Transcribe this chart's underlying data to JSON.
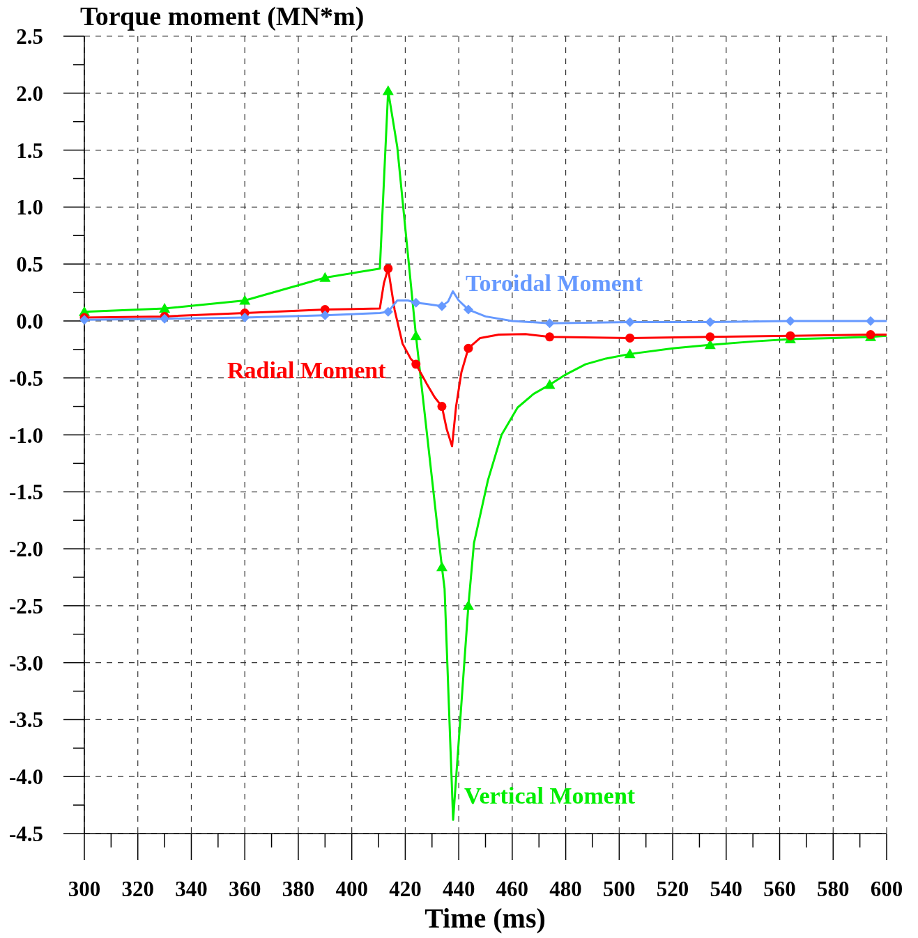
{
  "chart_data": {
    "type": "line",
    "ylabel": "Torque moment (MN*m)",
    "xlabel": "Time (ms)",
    "xlim": [
      300,
      600
    ],
    "ylim": [
      -4.5,
      2.5
    ],
    "xticks": [
      300,
      320,
      340,
      360,
      380,
      400,
      420,
      440,
      460,
      480,
      500,
      520,
      540,
      560,
      580,
      600
    ],
    "yticks": [
      {
        "value": -4.5,
        "label": "-4.5"
      },
      {
        "value": -4.25,
        "label": null
      },
      {
        "value": -4,
        "label": "-4.0"
      },
      {
        "value": -3.75,
        "label": null
      },
      {
        "value": -3.5,
        "label": "-3.5"
      },
      {
        "value": -3.25,
        "label": null
      },
      {
        "value": -3,
        "label": "-3.0"
      },
      {
        "value": -2.75,
        "label": null
      },
      {
        "value": -2.5,
        "label": "-2.5"
      },
      {
        "value": -2.25,
        "label": null
      },
      {
        "value": -2,
        "label": "-2.0"
      },
      {
        "value": -1.75,
        "label": null
      },
      {
        "value": -1.5,
        "label": "-1.5"
      },
      {
        "value": -1.25,
        "label": null
      },
      {
        "value": -1,
        "label": "-1.0"
      },
      {
        "value": -0.75,
        "label": null
      },
      {
        "value": -0.5,
        "label": "-0.5"
      },
      {
        "value": -0.25,
        "label": null
      },
      {
        "value": 0,
        "label": "0.0"
      },
      {
        "value": 0.25,
        "label": null
      },
      {
        "value": 0.5,
        "label": "0.5"
      },
      {
        "value": 0.75,
        "label": null
      },
      {
        "value": 1,
        "label": "1.0"
      },
      {
        "value": 1.25,
        "label": null
      },
      {
        "value": 1.5,
        "label": "1.5"
      },
      {
        "value": 1.75,
        "label": null
      },
      {
        "value": 2,
        "label": "2.0"
      },
      {
        "value": 2.25,
        "label": null
      },
      {
        "value": 2.5,
        "label": "2.5"
      }
    ],
    "grid": true,
    "line_style": "solid",
    "marker": "none",
    "series": [
      {
        "name": "Vertical Moment",
        "color": "#00ee00",
        "x": [
          300,
          330,
          360,
          390,
          410.5,
          413.6,
          417,
          424,
          433.7,
          434.7,
          437.9,
          443.6,
          445.7,
          450.9,
          456,
          462,
          468,
          474,
          480,
          487.4,
          495,
          504,
          520,
          534,
          550,
          564,
          580,
          594,
          600
        ],
        "values": [
          0.08,
          0.11,
          0.18,
          0.38,
          0.46,
          2.02,
          1.53,
          -0.13,
          -2.16,
          -2.35,
          -4.38,
          -2.5,
          -1.95,
          -1.4,
          -1.0,
          -0.76,
          -0.64,
          -0.56,
          -0.47,
          -0.38,
          -0.33,
          -0.29,
          -0.24,
          -0.21,
          -0.18,
          -0.16,
          -0.15,
          -0.14,
          -0.13
        ]
      },
      {
        "name": "Radial Moment",
        "color": "#ff0000",
        "x": [
          300,
          330,
          360,
          390,
          410.5,
          412,
          413.6,
          416,
          419,
          422,
          424,
          428,
          431,
          433.7,
          435.5,
          437.5,
          439,
          441,
          443.6,
          448,
          455,
          465,
          474,
          504,
          534,
          564,
          594,
          600
        ],
        "values": [
          0.03,
          0.04,
          0.07,
          0.1,
          0.11,
          0.33,
          0.46,
          0.1,
          -0.2,
          -0.33,
          -0.38,
          -0.55,
          -0.67,
          -0.75,
          -0.95,
          -1.1,
          -0.75,
          -0.45,
          -0.24,
          -0.15,
          -0.12,
          -0.115,
          -0.14,
          -0.15,
          -0.14,
          -0.13,
          -0.12,
          -0.12
        ]
      },
      {
        "name": "Toroidal Moment",
        "color": "#6699ff",
        "x": [
          300,
          330,
          360,
          390,
          410.5,
          413.6,
          417,
          421,
          424,
          428,
          433.7,
          436,
          437.8,
          440,
          443.6,
          450,
          460,
          474,
          504,
          534,
          564,
          594,
          600
        ],
        "values": [
          0.01,
          0.02,
          0.03,
          0.05,
          0.07,
          0.08,
          0.18,
          0.18,
          0.16,
          0.15,
          0.13,
          0.17,
          0.26,
          0.18,
          0.1,
          0.04,
          0,
          -0.02,
          -0.01,
          -0.01,
          0,
          0,
          0
        ]
      },
      {
        "type": "scatter",
        "marker": "triangle",
        "color": "#00ee00",
        "x": [
          300,
          330,
          360,
          390,
          413.6,
          424,
          433.7,
          443.6,
          474,
          504,
          534,
          564,
          594
        ],
        "values": [
          0.08,
          0.11,
          0.18,
          0.38,
          2.02,
          -0.13,
          -2.16,
          -2.5,
          -0.56,
          -0.29,
          -0.21,
          -0.16,
          -0.14
        ]
      },
      {
        "type": "scatter",
        "marker": "circle",
        "color": "#ff0000",
        "x": [
          300,
          330,
          360,
          390,
          413.6,
          424,
          433.7,
          443.6,
          474,
          504,
          534,
          564,
          594
        ],
        "values": [
          0.03,
          0.04,
          0.07,
          0.1,
          0.46,
          -0.38,
          -0.75,
          -0.24,
          -0.14,
          -0.15,
          -0.14,
          -0.13,
          -0.12
        ]
      },
      {
        "type": "scatter",
        "marker": "diamond",
        "color": "#6699ff",
        "x": [
          300,
          330,
          360,
          390,
          413.6,
          424,
          433.7,
          443.6,
          474,
          504,
          534,
          564,
          594
        ],
        "values": [
          0.01,
          0.02,
          0.03,
          0.05,
          0.08,
          0.16,
          0.13,
          0.1,
          -0.02,
          -0.01,
          -0.01,
          0,
          0
        ]
      }
    ]
  }
}
